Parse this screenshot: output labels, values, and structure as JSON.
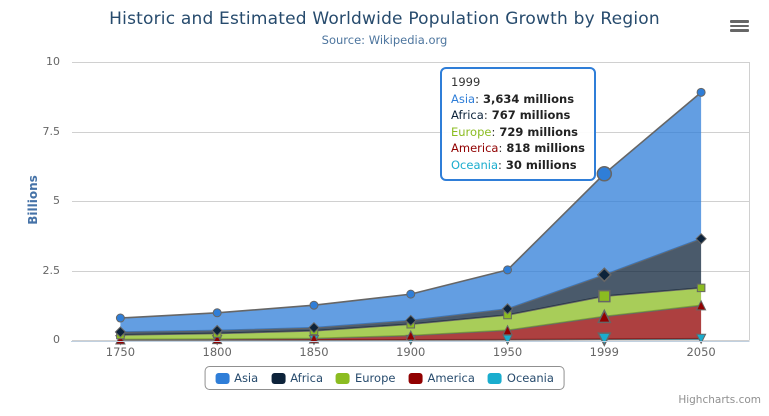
{
  "chart_data": {
    "type": "area",
    "stacking": "normal",
    "title": "Historic and Estimated Worldwide Population Growth by Region",
    "subtitle": "Source: Wikipedia.org",
    "categories": [
      "1750",
      "1800",
      "1850",
      "1900",
      "1950",
      "1999",
      "2050"
    ],
    "xlabel": "",
    "ylabel": "Billions",
    "ylim": [
      0,
      10
    ],
    "yticks": [
      0,
      2.5,
      5,
      7.5,
      10
    ],
    "grid": "horizontal",
    "unit": "millions",
    "legend_position": "bottom",
    "line_color": "#666666",
    "grid_color": "#d0d0d0",
    "axis_line_color": "#c0d0e0",
    "fill_opacity": 0.75,
    "hover_index": 5,
    "series": [
      {
        "name": "Asia",
        "color": "#2f7ed8",
        "marker": "circle",
        "values": [
          502,
          635,
          809,
          947,
          1402,
          3634,
          5268
        ]
      },
      {
        "name": "Africa",
        "color": "#0d233a",
        "marker": "diamond",
        "values": [
          106,
          107,
          111,
          133,
          221,
          767,
          1766
        ]
      },
      {
        "name": "Europe",
        "color": "#8bbc21",
        "marker": "square",
        "values": [
          163,
          203,
          276,
          408,
          547,
          729,
          628
        ]
      },
      {
        "name": "America",
        "color": "#910000",
        "marker": "triangle",
        "values": [
          18,
          31,
          54,
          156,
          339,
          818,
          1201
        ]
      },
      {
        "name": "Oceania",
        "color": "#1aadce",
        "marker": "triangle-down",
        "values": [
          2,
          2,
          2,
          6,
          13,
          30,
          46
        ]
      }
    ]
  },
  "tooltip": {
    "header": "1999",
    "border_color": "#2f7ed8",
    "rows": [
      {
        "name": "Asia",
        "color": "#2f7ed8",
        "value": "3,634 millions"
      },
      {
        "name": "Africa",
        "color": "#0d233a",
        "value": "767 millions"
      },
      {
        "name": "Europe",
        "color": "#8bbc21",
        "value": "729 millions"
      },
      {
        "name": "America",
        "color": "#910000",
        "value": "818 millions"
      },
      {
        "name": "Oceania",
        "color": "#1aadce",
        "value": "30 millions"
      }
    ]
  },
  "legend": {
    "items": [
      {
        "label": "Asia",
        "color": "#2f7ed8"
      },
      {
        "label": "Africa",
        "color": "#0d233a"
      },
      {
        "label": "Europe",
        "color": "#8bbc21"
      },
      {
        "label": "America",
        "color": "#910000"
      },
      {
        "label": "Oceania",
        "color": "#1aadce"
      }
    ]
  },
  "credits": {
    "label": "Highcharts.com"
  }
}
